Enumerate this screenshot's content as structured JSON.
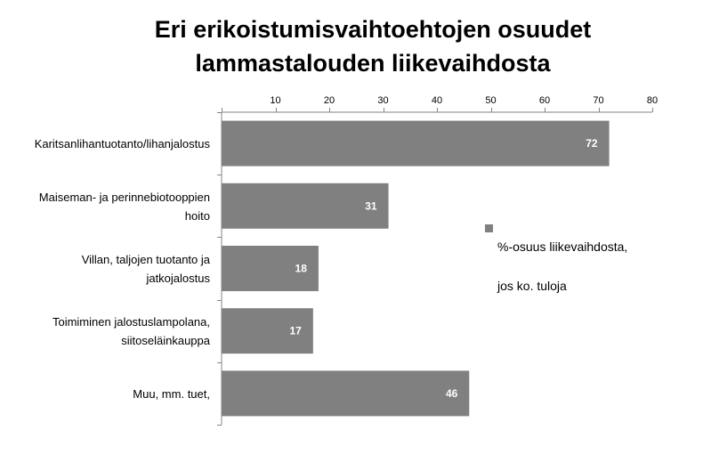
{
  "chart_data": {
    "type": "bar",
    "orientation": "horizontal",
    "title": "Eri erikoistumisvaihtoehtojen osuudet lammastalouden liikevaihdosta",
    "title_lines": [
      "Eri erikoistumisvaihtoehtojen osuudet",
      "lammastalouden liikevaihdosta"
    ],
    "categories": [
      [
        "Karitsanlihantuotanto/lihanjalostus"
      ],
      [
        "Maiseman- ja perinnebiotooppien",
        "hoito"
      ],
      [
        "Villan, taljojen tuotanto ja",
        "jatkojalostus"
      ],
      [
        "Toimiminen jalostuslampolana,",
        "siitoseläinkauppa"
      ],
      [
        "Muu, mm. tuet,"
      ]
    ],
    "series": [
      {
        "name": "%-osuus liikevaihdosta, jos ko. tuloja",
        "values": [
          72,
          31,
          18,
          17,
          46
        ],
        "color": "#808080"
      }
    ],
    "xlim": [
      0,
      80
    ],
    "x_ticks": [
      10,
      20,
      30,
      40,
      50,
      60,
      70,
      80
    ],
    "x_axis_position": "top",
    "grid": false,
    "data_labels": true,
    "legend_position": "right",
    "legend_lines": [
      "%-osuus liikevaihdosta,",
      "jos ko. tuloja"
    ]
  }
}
